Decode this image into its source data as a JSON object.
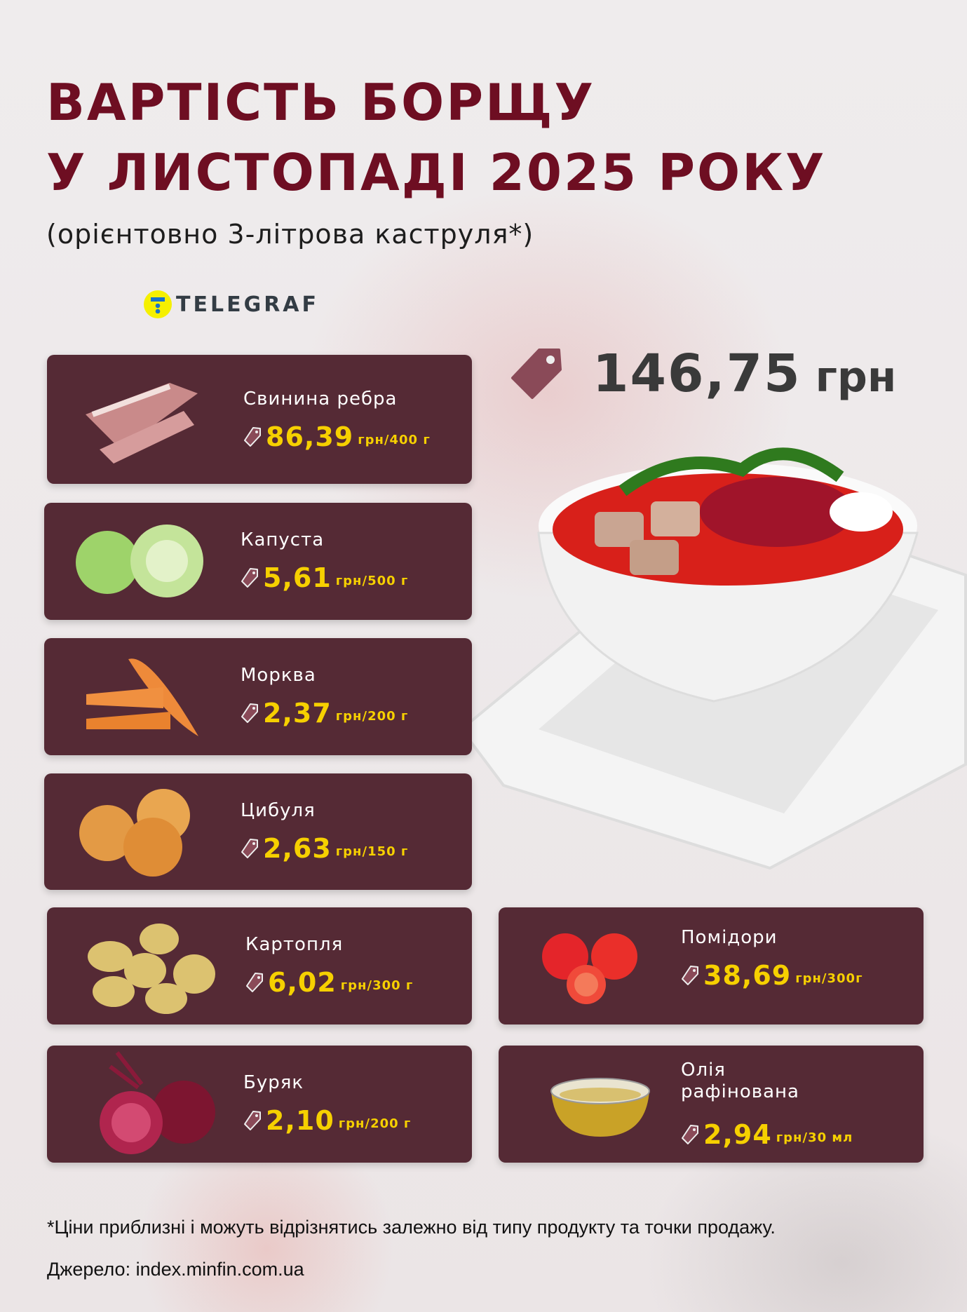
{
  "title": {
    "line1": "ВАРТІСТЬ БОРЩУ",
    "line2": "У ЛИСТОПАДІ 2025 РОКУ",
    "subtitle": "(орієнтовно 3-літрова каструля*)"
  },
  "logo": {
    "text": "TELEGRAF"
  },
  "total": {
    "value": "146,75",
    "unit": "грн"
  },
  "items": [
    {
      "name": "Свинина ребра",
      "price": "86,39",
      "unit": "грн/400 г",
      "icon": "pork-ribs"
    },
    {
      "name": "Капуста",
      "price": "5,61",
      "unit": "грн/500 г",
      "icon": "cabbage"
    },
    {
      "name": "Морква",
      "price": "2,37",
      "unit": "грн/200 г",
      "icon": "carrot"
    },
    {
      "name": "Цибуля",
      "price": "2,63",
      "unit": "грн/150 г",
      "icon": "onion"
    },
    {
      "name": "Картопля",
      "price": "6,02",
      "unit": "грн/300 г",
      "icon": "potato"
    },
    {
      "name": "Буряк",
      "price": "2,10",
      "unit": "грн/200 г",
      "icon": "beet"
    },
    {
      "name": "Помідори",
      "price": "38,69",
      "unit": "грн/300г",
      "icon": "tomato"
    },
    {
      "name": "Олія рафінована",
      "price": "2,94",
      "unit": "грн/30 мл",
      "icon": "oil"
    }
  ],
  "footnote": "*Ціни приблизні і можуть відрізнятись залежно від типу продукту та точки продажу.",
  "source": "Джерело: index.minfin.com.ua",
  "colors": {
    "title": "#6e0e22",
    "card": "#552a35",
    "price": "#f6d000",
    "tag": "#8a4a58"
  }
}
